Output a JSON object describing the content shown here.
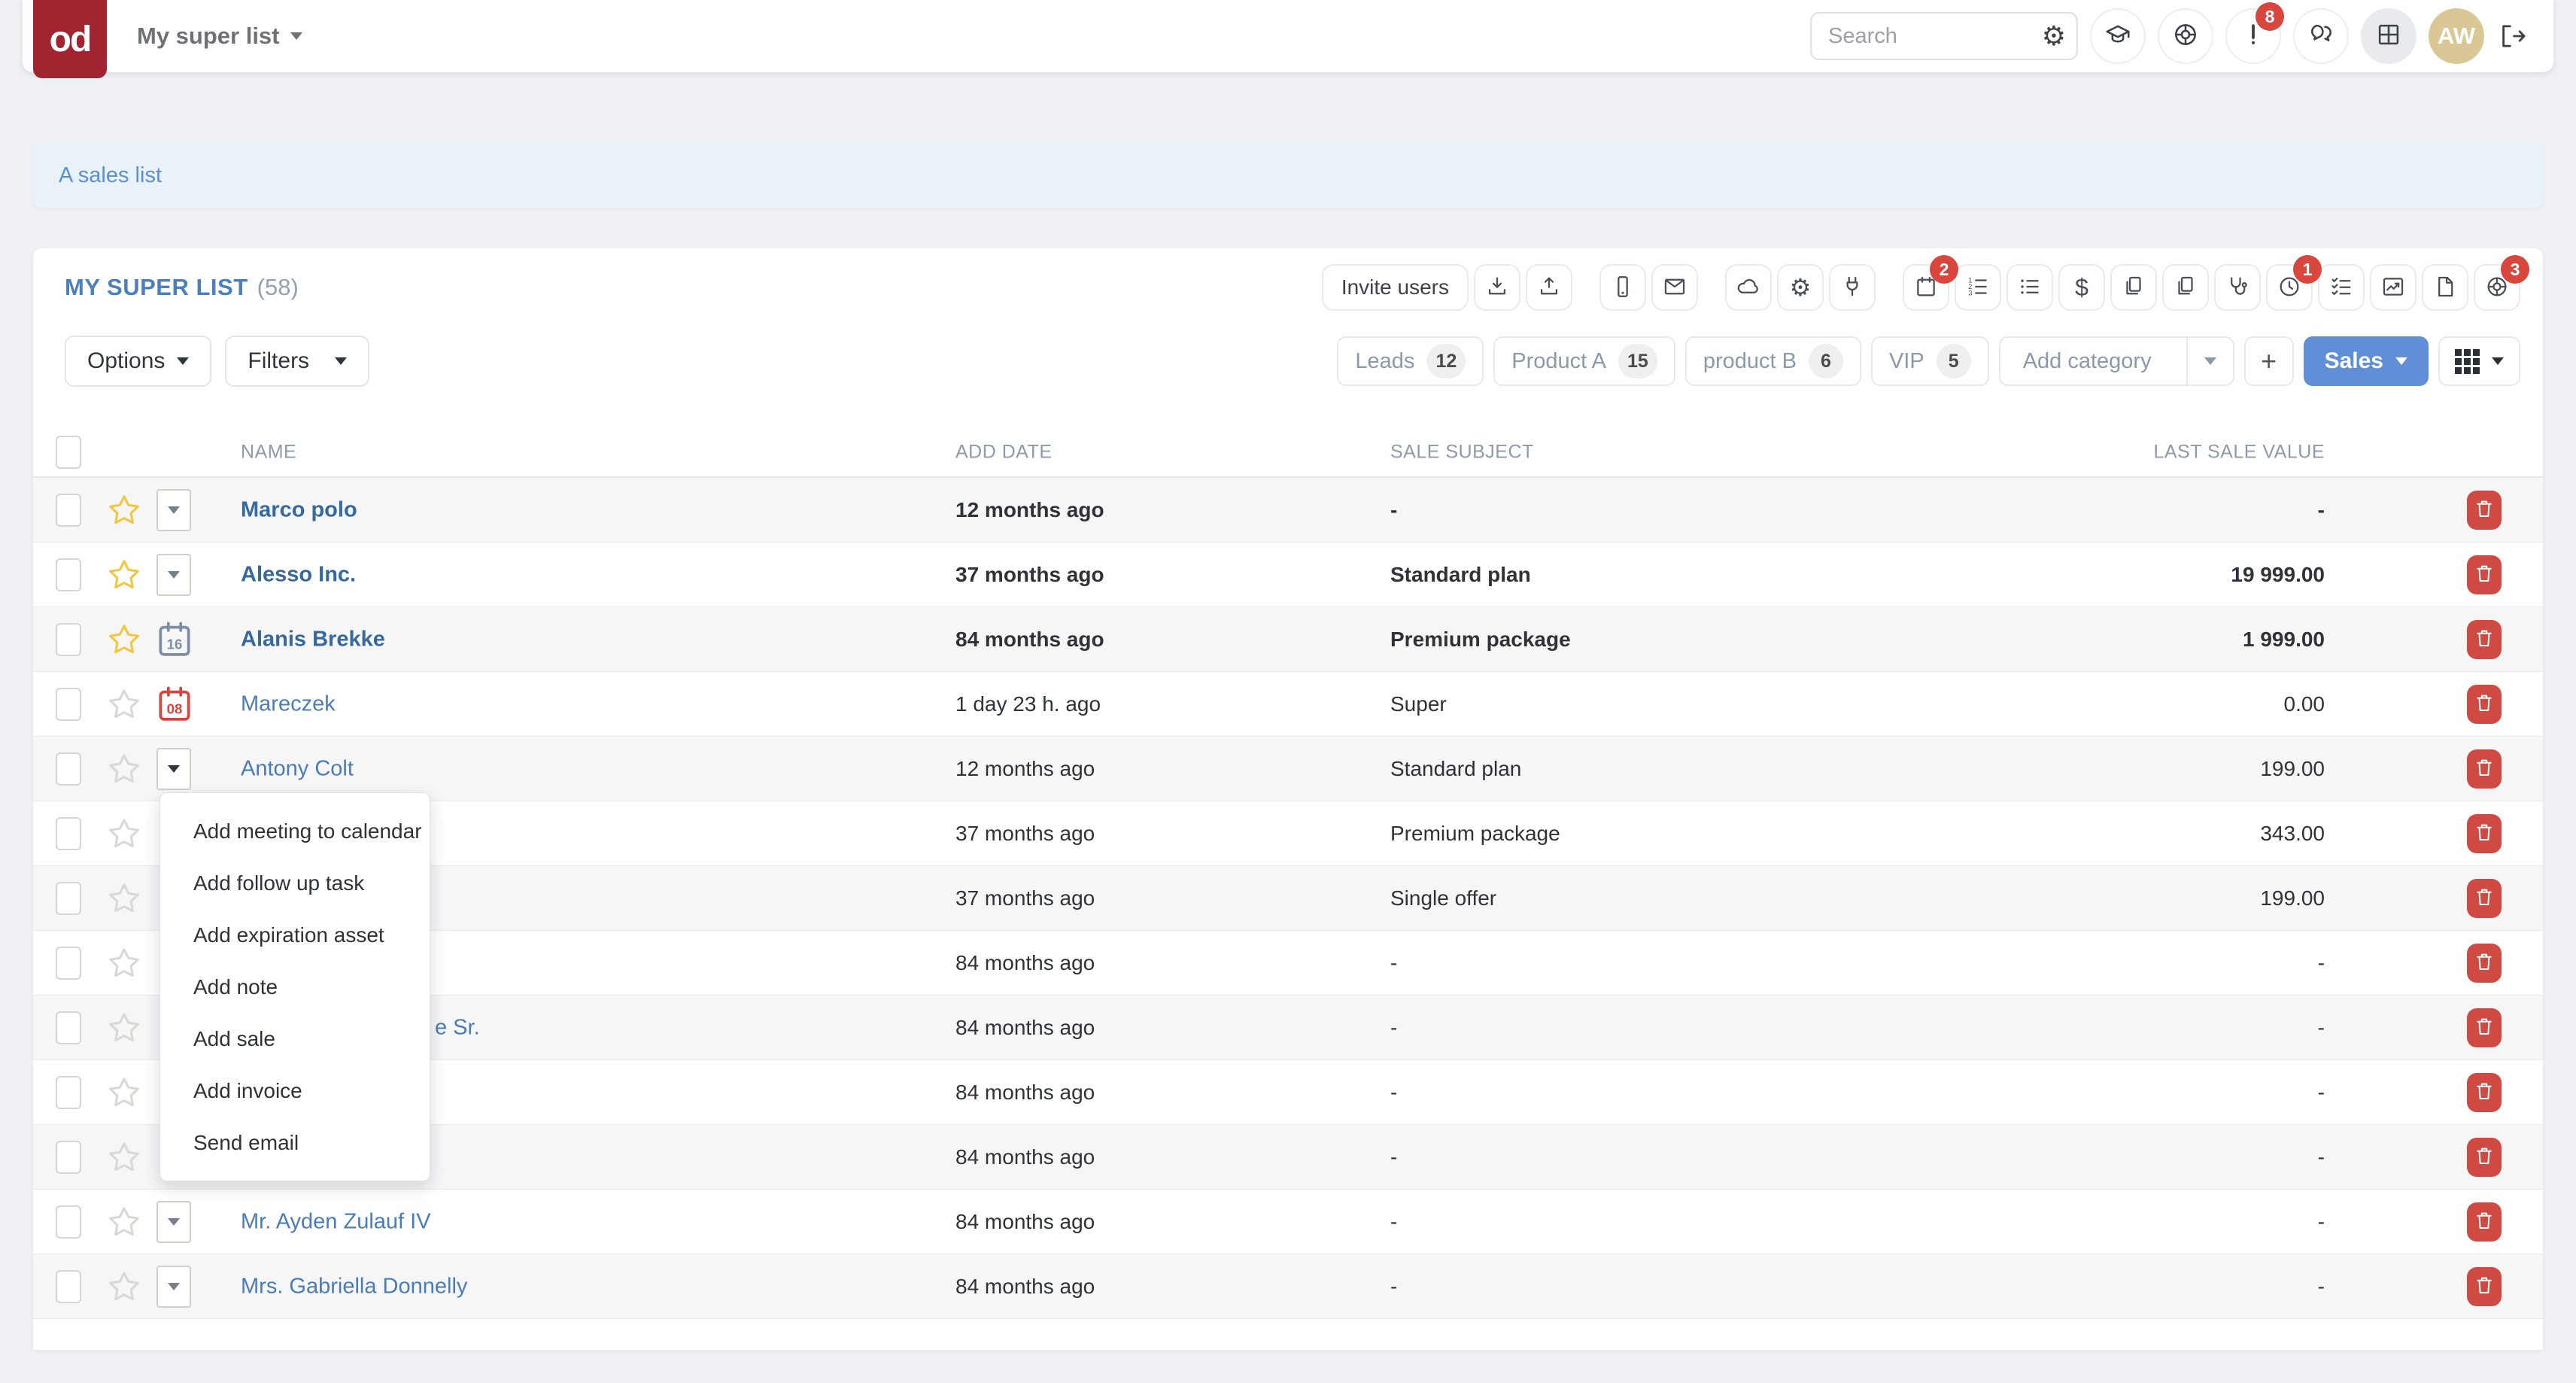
{
  "navbar": {
    "logo": "od",
    "list_title": "My super list",
    "search_placeholder": "Search",
    "icon_buttons": [
      {
        "name": "academy",
        "icon": "graduation-cap"
      },
      {
        "name": "support",
        "icon": "lifebuoy"
      },
      {
        "name": "notifications",
        "icon": "exclamation",
        "badge": "8"
      },
      {
        "name": "chat",
        "icon": "chat"
      },
      {
        "name": "app-grid",
        "icon": "grid",
        "active": true
      },
      {
        "name": "user-avatar",
        "avatar": "AW"
      },
      {
        "name": "logout",
        "icon": "logout",
        "plain": true
      }
    ]
  },
  "banner": {
    "text": "A sales list"
  },
  "list_header": {
    "title": "MY SUPER LIST",
    "count": "(58)",
    "invite_button": "Invite users",
    "tools": [
      {
        "name": "import",
        "icon": "download"
      },
      {
        "name": "export",
        "icon": "upload"
      },
      {
        "name": "sms",
        "icon": "phone",
        "gap_before": true
      },
      {
        "name": "email",
        "icon": "envelope"
      },
      {
        "name": "cloud",
        "icon": "cloud",
        "gap_before": true
      },
      {
        "name": "settings",
        "icon": "gear"
      },
      {
        "name": "integrations",
        "icon": "plug"
      },
      {
        "name": "meetings",
        "icon": "calendar",
        "badge": "2",
        "gap_before": true
      },
      {
        "name": "numbered-list",
        "icon": "list-numbered"
      },
      {
        "name": "bullet-list",
        "icon": "list-bullet"
      },
      {
        "name": "sales",
        "icon": "dollar"
      },
      {
        "name": "documents",
        "icon": "copy"
      },
      {
        "name": "documents-2",
        "icon": "copy"
      },
      {
        "name": "health",
        "icon": "stethoscope"
      },
      {
        "name": "history",
        "icon": "clock",
        "badge": "1"
      },
      {
        "name": "tasks",
        "icon": "checklist"
      },
      {
        "name": "reports",
        "icon": "chart"
      },
      {
        "name": "files",
        "icon": "file"
      },
      {
        "name": "help",
        "icon": "lifebuoy",
        "badge": "3"
      }
    ]
  },
  "filter_bar": {
    "options_label": "Options",
    "filters_label": "Filters",
    "categories": [
      {
        "label": "Leads",
        "count": "12"
      },
      {
        "label": "Product A",
        "count": "15"
      },
      {
        "label": "product B",
        "count": "6"
      },
      {
        "label": "VIP",
        "count": "5"
      }
    ],
    "add_category_label": "Add category",
    "plus_label": "+",
    "sales_label": "Sales"
  },
  "table": {
    "columns": [
      "NAME",
      "ADD DATE",
      "SALE SUBJECT",
      "LAST SALE VALUE"
    ],
    "rows": [
      {
        "name": "Marco polo",
        "bold": true,
        "starred": true,
        "action": "dropdown",
        "add_date": "12 months ago",
        "sale_subject": "-",
        "last_sale_value": "-"
      },
      {
        "name": "Alesso Inc.",
        "bold": true,
        "starred": true,
        "action": "dropdown",
        "add_date": "37 months ago",
        "sale_subject": "Standard plan",
        "last_sale_value": "19 999.00"
      },
      {
        "name": "Alanis Brekke",
        "bold": true,
        "starred": true,
        "action": "calendar",
        "calendar_day": "16",
        "calendar_color": "gray",
        "add_date": "84 months ago",
        "sale_subject": "Premium package",
        "last_sale_value": "1 999.00"
      },
      {
        "name": "Mareczek",
        "starred": false,
        "action": "calendar",
        "calendar_day": "08",
        "calendar_color": "red",
        "add_date": "1 day 23 h. ago",
        "sale_subject": "Super",
        "last_sale_value": "0.00"
      },
      {
        "name": "Antony Colt",
        "starred": false,
        "action": "dropdown",
        "open": true,
        "add_date": "12 months ago",
        "sale_subject": "Standard plan",
        "last_sale_value": "199.00"
      },
      {
        "name": "",
        "starred": false,
        "action": "none",
        "add_date": "37 months ago",
        "sale_subject": "Premium package",
        "last_sale_value": "343.00"
      },
      {
        "name": "",
        "starred": false,
        "action": "none",
        "add_date": "37 months ago",
        "sale_subject": "Single offer",
        "last_sale_value": "199.00"
      },
      {
        "name": "",
        "starred": false,
        "action": "none",
        "add_date": "84 months ago",
        "sale_subject": "-",
        "last_sale_value": "-"
      },
      {
        "name": "",
        "visible_name_fragment": "e Sr.",
        "starred": false,
        "action": "none",
        "add_date": "84 months ago",
        "sale_subject": "-",
        "last_sale_value": "-"
      },
      {
        "name": "",
        "starred": false,
        "action": "none",
        "add_date": "84 months ago",
        "sale_subject": "-",
        "last_sale_value": "-"
      },
      {
        "name": "",
        "starred": false,
        "action": "none",
        "add_date": "84 months ago",
        "sale_subject": "-",
        "last_sale_value": "-"
      },
      {
        "name": "Mr. Ayden Zulauf IV",
        "starred": false,
        "action": "dropdown",
        "add_date": "84 months ago",
        "sale_subject": "-",
        "last_sale_value": "-"
      },
      {
        "name": "Mrs. Gabriella Donnelly",
        "starred": false,
        "action": "dropdown",
        "add_date": "84 months ago",
        "sale_subject": "-",
        "last_sale_value": "-"
      },
      {
        "name": "",
        "partial": true,
        "action": "none"
      }
    ]
  },
  "context_menu": {
    "items": [
      "Add meeting to calendar",
      "Add follow up task",
      "Add expiration asset",
      "Add note",
      "Add sale",
      "Add invoice",
      "Send email"
    ]
  },
  "colors": {
    "brand_red": "#a12431",
    "accent_blue": "#608fd7",
    "link_blue": "#4a7cb8",
    "danger_red": "#cf4a42",
    "badge_red": "#d9463e",
    "star_yellow": "#f3c73d",
    "banner_bg": "#e9f1f9"
  }
}
